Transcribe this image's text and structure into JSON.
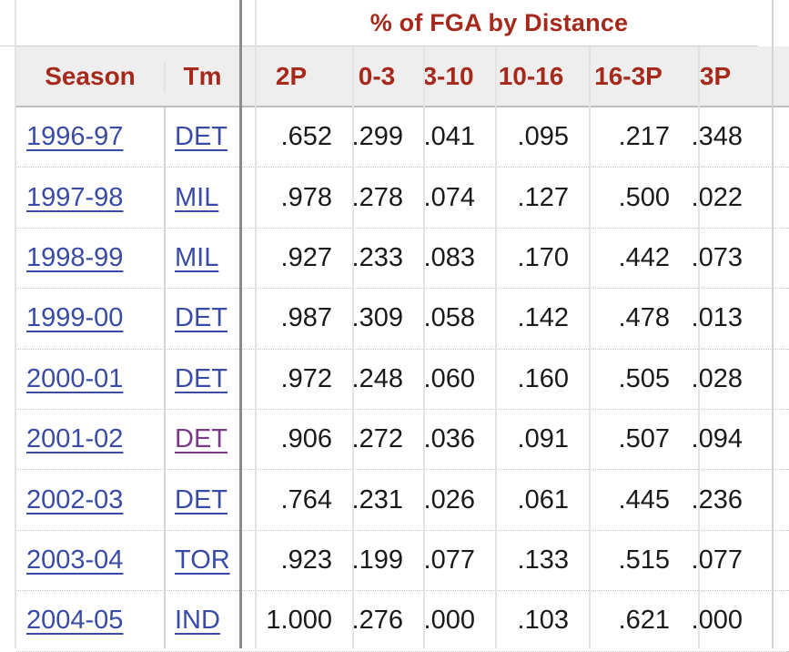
{
  "group_header": {
    "title": "% of FGA by Distance"
  },
  "columns": [
    {
      "key": "season",
      "label": "Season"
    },
    {
      "key": "tm",
      "label": "Tm"
    },
    {
      "key": "2p",
      "label": "2P"
    },
    {
      "key": "0_3",
      "label": "0-3"
    },
    {
      "key": "3_10",
      "label": "3-10"
    },
    {
      "key": "10_16",
      "label": "10-16"
    },
    {
      "key": "16_3p",
      "label": "16-3P"
    },
    {
      "key": "3p",
      "label": "3P"
    }
  ],
  "rows": [
    {
      "season": "1996-97",
      "tm": "DET",
      "p2": ".652",
      "d0_3": ".299",
      "d3_10": ".041",
      "d10_16": ".095",
      "d16_3p": ".217",
      "p3": ".348"
    },
    {
      "season": "1997-98",
      "tm": "MIL",
      "p2": ".978",
      "d0_3": ".278",
      "d3_10": ".074",
      "d10_16": ".127",
      "d16_3p": ".500",
      "p3": ".022"
    },
    {
      "season": "1998-99",
      "tm": "MIL",
      "p2": ".927",
      "d0_3": ".233",
      "d3_10": ".083",
      "d10_16": ".170",
      "d16_3p": ".442",
      "p3": ".073"
    },
    {
      "season": "1999-00",
      "tm": "DET",
      "p2": ".987",
      "d0_3": ".309",
      "d3_10": ".058",
      "d10_16": ".142",
      "d16_3p": ".478",
      "p3": ".013"
    },
    {
      "season": "2000-01",
      "tm": "DET",
      "p2": ".972",
      "d0_3": ".248",
      "d3_10": ".060",
      "d10_16": ".160",
      "d16_3p": ".505",
      "p3": ".028"
    },
    {
      "season": "2001-02",
      "tm": "DET",
      "p2": ".906",
      "d0_3": ".272",
      "d3_10": ".036",
      "d10_16": ".091",
      "d16_3p": ".507",
      "p3": ".094",
      "tm_visited": true
    },
    {
      "season": "2002-03",
      "tm": "DET",
      "p2": ".764",
      "d0_3": ".231",
      "d3_10": ".026",
      "d10_16": ".061",
      "d16_3p": ".445",
      "p3": ".236"
    },
    {
      "season": "2003-04",
      "tm": "TOR",
      "p2": ".923",
      "d0_3": ".199",
      "d3_10": ".077",
      "d10_16": ".133",
      "d16_3p": ".515",
      "p3": ".077"
    },
    {
      "season": "2004-05",
      "tm": "IND",
      "p2": "1.000",
      "d0_3": ".276",
      "d3_10": ".000",
      "d10_16": ".103",
      "d16_3p": ".621",
      "p3": ".000"
    }
  ],
  "colors": {
    "header_text": "#a52a1c",
    "link": "#3a4ba6",
    "visited_link": "#7a3a86",
    "header_bg": "#eeeeee"
  }
}
